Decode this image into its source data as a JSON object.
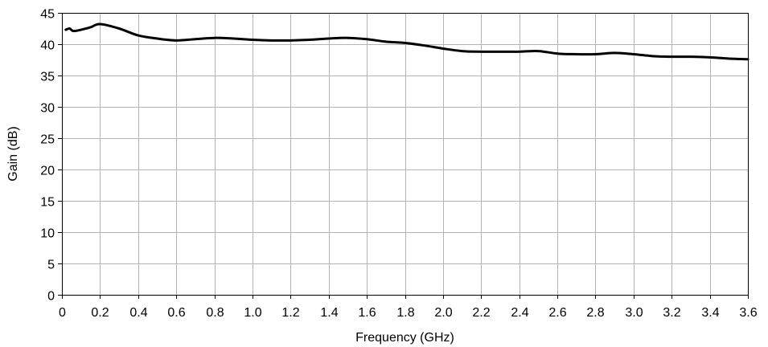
{
  "chart_data": {
    "type": "line",
    "title": "",
    "xlabel": "Frequency (GHz)",
    "ylabel": "Gain (dB)",
    "xlim": [
      0,
      3.6
    ],
    "ylim": [
      0,
      45
    ],
    "x_ticks": [
      "0",
      "0.2",
      "0.4",
      "0.6",
      "0.8",
      "1.0",
      "1.2",
      "1.4",
      "1.6",
      "1.8",
      "2.0",
      "2.2",
      "2.4",
      "2.6",
      "2.8",
      "3.0",
      "3.2",
      "3.4",
      "3.6"
    ],
    "y_ticks": [
      "0",
      "5",
      "10",
      "15",
      "20",
      "25",
      "30",
      "35",
      "40",
      "45"
    ],
    "grid": true,
    "legend": "none",
    "line_color": "#000000",
    "grid_color": "#b3b3b3",
    "series": [
      {
        "x": [
          0.02,
          0.04,
          0.06,
          0.1,
          0.15,
          0.2,
          0.3,
          0.4,
          0.5,
          0.6,
          0.7,
          0.8,
          0.9,
          1.0,
          1.1,
          1.2,
          1.3,
          1.4,
          1.5,
          1.6,
          1.7,
          1.8,
          1.9,
          2.0,
          2.1,
          2.2,
          2.3,
          2.4,
          2.5,
          2.6,
          2.7,
          2.8,
          2.9,
          3.0,
          3.1,
          3.2,
          3.3,
          3.4,
          3.5,
          3.6
        ],
        "y": [
          42.3,
          42.5,
          42.1,
          42.3,
          42.7,
          43.2,
          42.5,
          41.4,
          40.9,
          40.6,
          40.8,
          41.0,
          40.9,
          40.7,
          40.6,
          40.6,
          40.7,
          40.9,
          41.0,
          40.8,
          40.4,
          40.2,
          39.8,
          39.3,
          38.9,
          38.8,
          38.8,
          38.8,
          38.9,
          38.5,
          38.4,
          38.4,
          38.6,
          38.4,
          38.1,
          38.0,
          38.0,
          37.9,
          37.7,
          37.6
        ]
      }
    ]
  }
}
